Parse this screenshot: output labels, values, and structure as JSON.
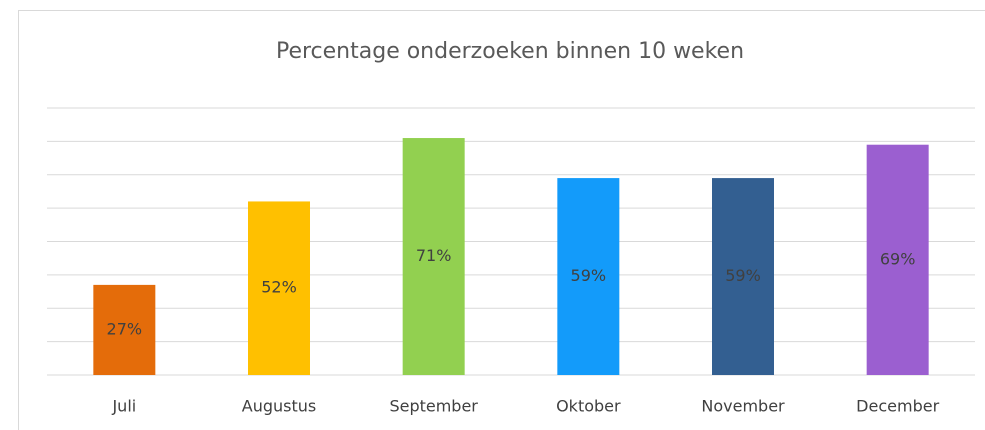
{
  "chart_data": {
    "type": "bar",
    "title": "Percentage onderzoeken binnen 10 weken",
    "categories": [
      "Juli",
      "Augustus",
      "September",
      "Oktober",
      "November",
      "December"
    ],
    "values": [
      27,
      52,
      71,
      59,
      59,
      69
    ],
    "value_labels": [
      "27%",
      "52%",
      "71%",
      "59%",
      "59%",
      "69%"
    ],
    "colors": [
      "#e46c0a",
      "#ffc000",
      "#92d050",
      "#139bfa",
      "#335f91",
      "#9b5fd0"
    ],
    "ylim": [
      0,
      80
    ],
    "yticks": [
      0,
      10,
      20,
      30,
      40,
      50,
      60,
      70,
      80
    ],
    "grid": true
  }
}
